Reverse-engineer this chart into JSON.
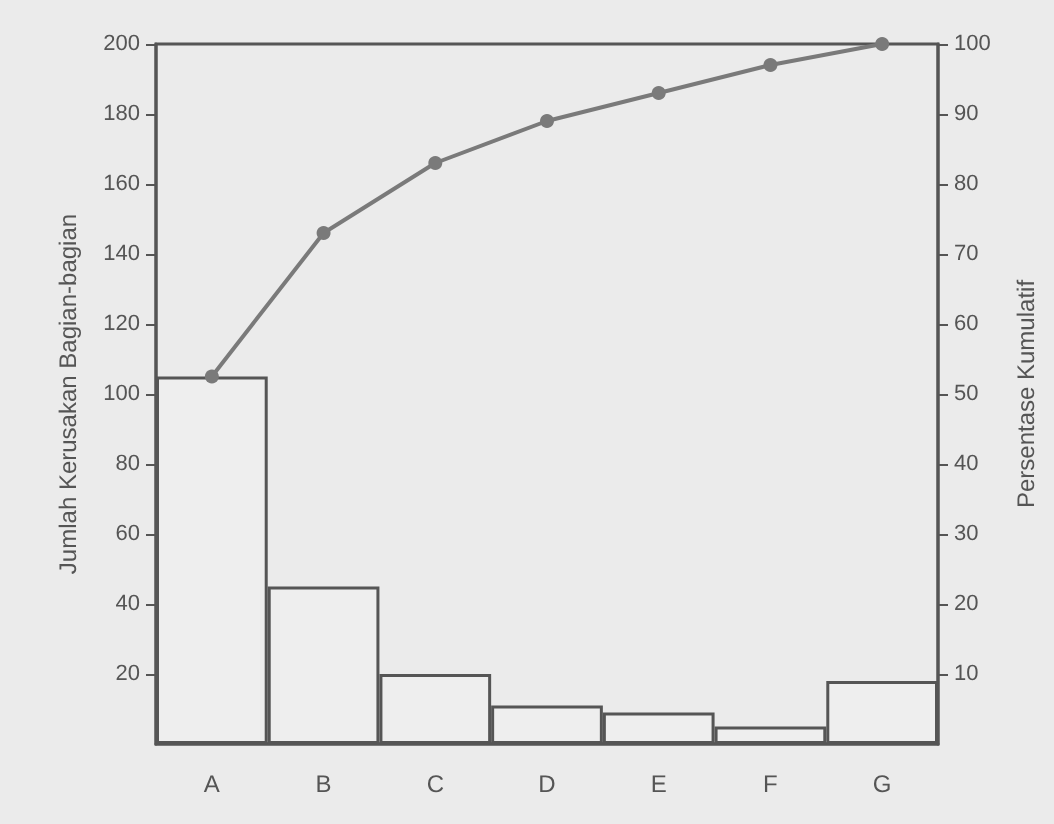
{
  "chart_data": {
    "type": "bar",
    "categories": [
      "A",
      "B",
      "C",
      "D",
      "E",
      "F",
      "G"
    ],
    "ylabel": "Jumlah Kerusakan Bagian-bagian",
    "y2label": "Persentase Kumulatif",
    "series": [
      {
        "color": "#eeeeee",
        "values": [
          105,
          45,
          20,
          11,
          9,
          5,
          18
        ]
      },
      {
        "type": "line",
        "axis": "y2",
        "color": "#7a7a7a",
        "values": [
          52.5,
          73,
          83,
          89,
          93,
          97,
          100
        ]
      }
    ],
    "ylim": [
      0,
      200
    ],
    "yticks": [
      20,
      40,
      60,
      80,
      100,
      120,
      140,
      160,
      180,
      200
    ],
    "y2lim": [
      0,
      100
    ],
    "y2ticks": [
      10,
      20,
      30,
      40,
      50,
      60,
      70,
      80,
      90,
      100
    ],
    "grid": false,
    "marker": "circle",
    "line_style": "solid"
  }
}
